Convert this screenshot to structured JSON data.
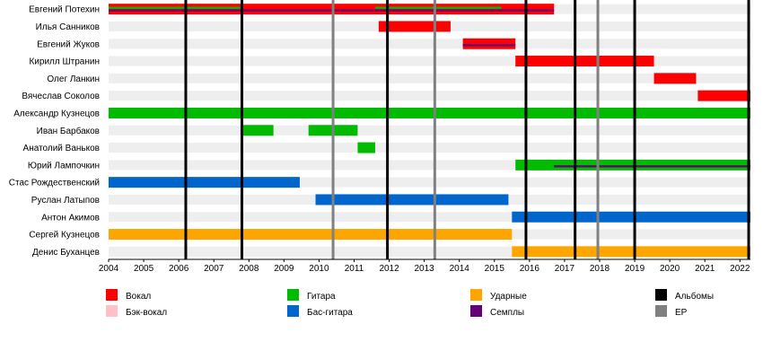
{
  "chart_data": {
    "type": "timeline",
    "title": "",
    "x_axis": {
      "min": 2004,
      "max": 2022.3,
      "ticks": [
        2004,
        2005,
        2006,
        2007,
        2008,
        2009,
        2010,
        2011,
        2012,
        2013,
        2014,
        2015,
        2016,
        2017,
        2018,
        2019,
        2020,
        2021,
        2022
      ]
    },
    "grid": true,
    "colors": {
      "vocal": "#ff0000",
      "backing_vocal": "#ffc0c8",
      "guitar": "#00bb00",
      "bass": "#0066cc",
      "drums": "#ffa500",
      "samples": "#660077",
      "album": "#000000",
      "ep": "#808080",
      "row_stripe": "#eeeeee"
    },
    "members": [
      {
        "name": "Евгений Потехин",
        "bars": [
          {
            "role": "vocal",
            "start": 2004.0,
            "end": 2016.7
          },
          {
            "role": "guitar",
            "start": 2004.0,
            "end": 2007.8,
            "thin": true
          },
          {
            "role": "samples",
            "start": 2004.0,
            "end": 2007.8,
            "thin": true
          },
          {
            "role": "samples",
            "start": 2007.8,
            "end": 2011.6,
            "thin": true
          },
          {
            "role": "guitar",
            "start": 2011.6,
            "end": 2015.2,
            "thin": true
          },
          {
            "role": "samples",
            "start": 2011.6,
            "end": 2015.2,
            "thin": true
          },
          {
            "role": "samples",
            "start": 2015.2,
            "end": 2016.7,
            "thin": true
          }
        ]
      },
      {
        "name": "Илья Санников",
        "bars": [
          {
            "role": "vocal",
            "start": 2011.7,
            "end": 2013.75
          }
        ]
      },
      {
        "name": "Евгений Жуков",
        "bars": [
          {
            "role": "vocal",
            "start": 2014.1,
            "end": 2015.6
          },
          {
            "role": "samples",
            "start": 2014.1,
            "end": 2015.6,
            "thin": true
          }
        ]
      },
      {
        "name": "Кирилл Штранин",
        "bars": [
          {
            "role": "vocal",
            "start": 2015.6,
            "end": 2019.55
          }
        ]
      },
      {
        "name": "Олег Ланкин",
        "bars": [
          {
            "role": "vocal",
            "start": 2019.55,
            "end": 2020.75
          }
        ]
      },
      {
        "name": "Вячеслав Соколов",
        "bars": [
          {
            "role": "vocal",
            "start": 2020.8,
            "end": 2022.3
          }
        ]
      },
      {
        "name": "Александр Кузнецов",
        "bars": [
          {
            "role": "guitar",
            "start": 2004.0,
            "end": 2022.3
          }
        ]
      },
      {
        "name": "Иван Барбаков",
        "bars": [
          {
            "role": "guitar",
            "start": 2007.8,
            "end": 2008.7
          },
          {
            "role": "guitar",
            "start": 2009.7,
            "end": 2011.1
          }
        ]
      },
      {
        "name": "Анатолий Ваньков",
        "bars": [
          {
            "role": "guitar",
            "start": 2011.1,
            "end": 2011.6
          }
        ]
      },
      {
        "name": "Юрий Лампочкин",
        "bars": [
          {
            "role": "guitar",
            "start": 2015.6,
            "end": 2022.3
          },
          {
            "role": "samples",
            "start": 2016.7,
            "end": 2022.3,
            "thin": true
          }
        ]
      },
      {
        "name": "Стас Рождественский",
        "bars": [
          {
            "role": "bass",
            "start": 2004.0,
            "end": 2009.45
          }
        ]
      },
      {
        "name": "Руслан Латыпов",
        "bars": [
          {
            "role": "bass",
            "start": 2009.9,
            "end": 2015.4
          }
        ]
      },
      {
        "name": "Антон Акимов",
        "bars": [
          {
            "role": "bass",
            "start": 2015.5,
            "end": 2022.3
          }
        ]
      },
      {
        "name": "Сергей Кузнецов",
        "bars": [
          {
            "role": "drums",
            "start": 2004.0,
            "end": 2015.5
          }
        ]
      },
      {
        "name": "Денис Буханцев",
        "bars": [
          {
            "role": "drums",
            "start": 2015.5,
            "end": 2022.3
          }
        ]
      }
    ],
    "releases": [
      {
        "type": "album",
        "year": 2006.2
      },
      {
        "type": "album",
        "year": 2007.8
      },
      {
        "type": "ep",
        "year": 2010.4
      },
      {
        "type": "album",
        "year": 2011.95
      },
      {
        "type": "ep",
        "year": 2013.3
      },
      {
        "type": "album",
        "year": 2015.9
      },
      {
        "type": "album",
        "year": 2017.3
      },
      {
        "type": "ep",
        "year": 2017.95
      },
      {
        "type": "album",
        "year": 2019.0
      },
      {
        "type": "album",
        "year": 2022.25
      }
    ],
    "legend": [
      {
        "role": "vocal",
        "label": "Вокал"
      },
      {
        "role": "backing_vocal",
        "label": "Бэк-вокал"
      },
      {
        "role": "guitar",
        "label": "Гитара"
      },
      {
        "role": "bass",
        "label": "Бас-гитара"
      },
      {
        "role": "drums",
        "label": "Ударные"
      },
      {
        "role": "samples",
        "label": "Семплы"
      },
      {
        "role": "album",
        "label": "Альбомы"
      },
      {
        "role": "ep",
        "label": "EP"
      }
    ]
  }
}
